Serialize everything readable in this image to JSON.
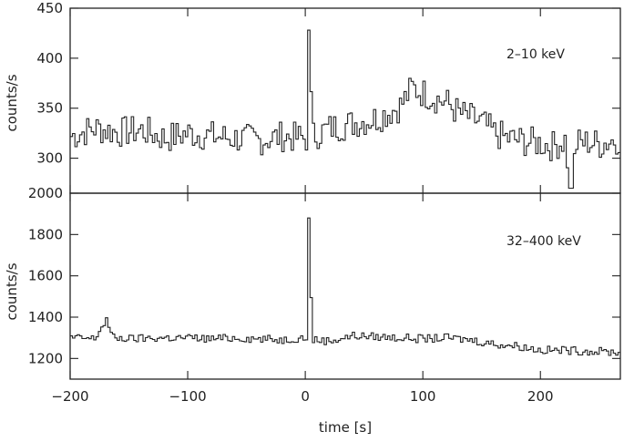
{
  "chart_data": [
    {
      "type": "line",
      "panel": "top",
      "annotation": "2–10 keV",
      "xlabel": "",
      "ylabel": "counts/s",
      "xlim": [
        -200,
        268
      ],
      "ylim": [
        265,
        450
      ],
      "yticks": [
        300,
        350,
        400,
        450
      ],
      "xticks": [
        -200,
        -100,
        0,
        100,
        200
      ],
      "show_xticklabels": false,
      "grid": false,
      "series": [
        {
          "step": true,
          "x": [
            -200,
            -180,
            -160,
            -140,
            -120,
            -100,
            -80,
            -60,
            -40,
            -20,
            -5,
            0,
            2,
            5,
            20,
            40,
            60,
            80,
            90,
            100,
            110,
            120,
            130,
            140,
            150,
            160,
            170,
            180,
            190,
            200,
            210,
            220,
            225,
            230,
            240,
            250,
            260,
            268
          ],
          "y": [
            322,
            330,
            326,
            328,
            320,
            325,
            322,
            320,
            318,
            322,
            320,
            320,
            428,
            322,
            330,
            335,
            340,
            352,
            370,
            365,
            360,
            355,
            345,
            340,
            335,
            325,
            320,
            318,
            316,
            315,
            312,
            318,
            270,
            315,
            316,
            314,
            318,
            320
          ]
        }
      ]
    },
    {
      "type": "line",
      "panel": "bottom",
      "annotation": "32–400 keV",
      "xlabel": "time [s]",
      "ylabel": "counts/s",
      "xlim": [
        -200,
        268
      ],
      "ylim": [
        1100,
        2000
      ],
      "yticks": [
        1200,
        1400,
        1600,
        1800,
        2000
      ],
      "xticks": [
        -200,
        -100,
        0,
        100,
        200
      ],
      "show_xticklabels": true,
      "grid": false,
      "series": [
        {
          "step": true,
          "x": [
            -200,
            -180,
            -170,
            -165,
            -150,
            -120,
            -100,
            -80,
            -60,
            -40,
            -20,
            -5,
            0,
            2,
            5,
            20,
            40,
            60,
            80,
            100,
            120,
            140,
            160,
            180,
            200,
            220,
            240,
            268
          ],
          "y": [
            1300,
            1295,
            1390,
            1300,
            1295,
            1300,
            1300,
            1295,
            1300,
            1295,
            1290,
            1300,
            1300,
            1880,
            1290,
            1285,
            1310,
            1305,
            1300,
            1295,
            1300,
            1290,
            1270,
            1260,
            1240,
            1240,
            1235,
            1230
          ]
        }
      ]
    }
  ]
}
